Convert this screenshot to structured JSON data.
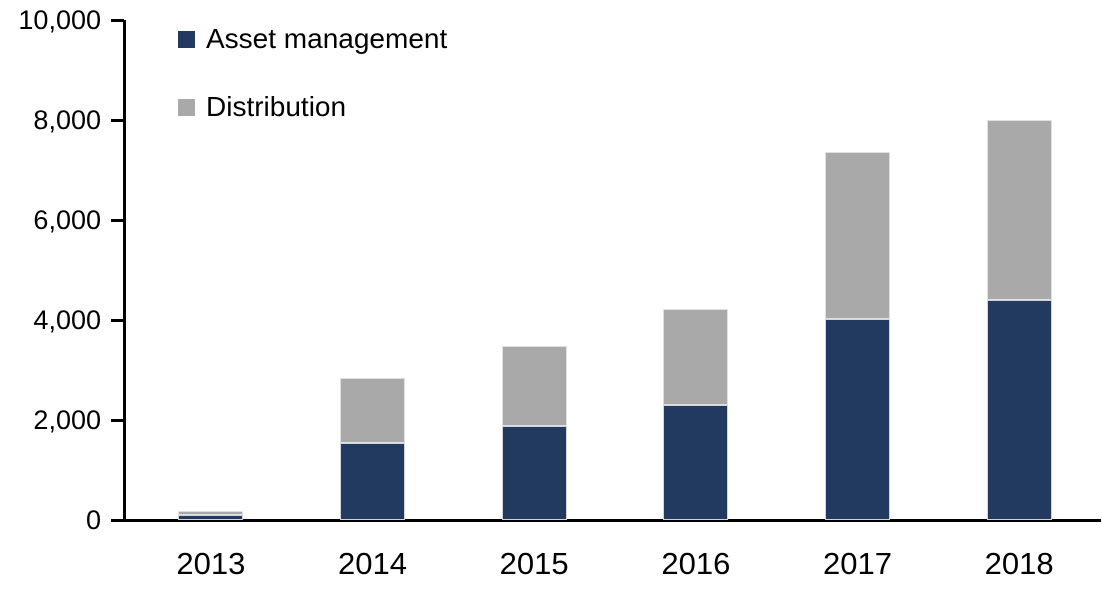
{
  "chart_data": {
    "type": "bar",
    "stacked": true,
    "title": "",
    "xlabel": "",
    "ylabel": "",
    "categories": [
      "2013",
      "2014",
      "2015",
      "2016",
      "2017",
      "2018"
    ],
    "series": [
      {
        "name": "Asset management",
        "color": "#233a60",
        "values": [
          110,
          1540,
          1880,
          2310,
          4030,
          4410
        ]
      },
      {
        "name": "Distribution",
        "color": "#a9a9a9",
        "values": [
          80,
          1310,
          1610,
          1920,
          3340,
          3590
        ]
      }
    ],
    "totals": [
      190,
      2850,
      3490,
      4230,
      7370,
      8000
    ],
    "ylim": [
      0,
      10000
    ],
    "ytick_interval": 2000,
    "ytick_labels": [
      "0",
      "2,000",
      "4,000",
      "6,000",
      "8,000",
      "10,000"
    ],
    "grid": false,
    "legend_position": "top-left-inside",
    "axis_color": "#000000",
    "background_color": "#ffffff"
  }
}
